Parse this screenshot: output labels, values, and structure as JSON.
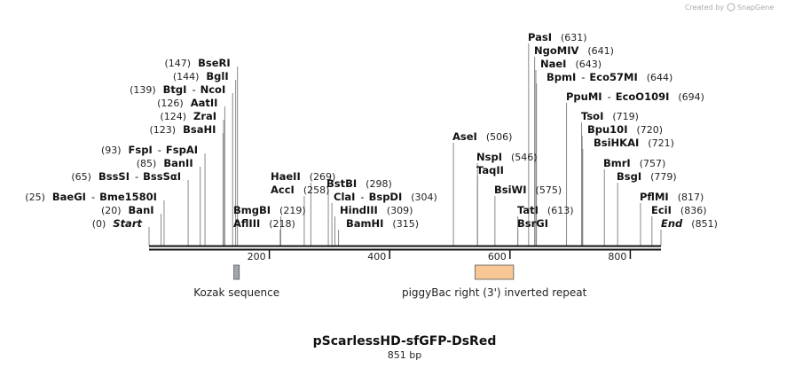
{
  "credit": {
    "text": "Created by",
    "brand": "SnapGene"
  },
  "map": {
    "title": "pScarlessHD-sfGFP-DsRed",
    "length": 851,
    "length_label": "851 bp"
  },
  "ticks": [
    {
      "bp": 200,
      "label": "200"
    },
    {
      "bp": 400,
      "label": "400"
    },
    {
      "bp": 600,
      "label": "600"
    },
    {
      "bp": 800,
      "label": "800"
    }
  ],
  "features": [
    {
      "name": "Kozak sequence",
      "start": 141,
      "end": 150,
      "color": "#a2a7ad"
    },
    {
      "name": "piggyBac right (3') inverted repeat",
      "start": 542,
      "end": 606,
      "color": "#f9c795"
    }
  ],
  "sites": [
    {
      "pos_text": "(0)",
      "name": "Start",
      "italic": true,
      "bp": 0
    },
    {
      "pos_text": "(20)",
      "name": "BanI",
      "bp": 20
    },
    {
      "pos_text": "(25)",
      "name": "BaeGI",
      "alt": "Bme1580I",
      "bp": 25
    },
    {
      "pos_text": "(65)",
      "name": "BssSI",
      "alt": "BssSαI",
      "bp": 65
    },
    {
      "pos_text": "(85)",
      "name": "BanII",
      "bp": 85
    },
    {
      "pos_text": "(93)",
      "name": "FspI",
      "alt": "FspAI",
      "bp": 93
    },
    {
      "pos_text": "(123)",
      "name": "BsaHI",
      "bp": 123
    },
    {
      "pos_text": "(124)",
      "name": "ZraI",
      "bp": 124
    },
    {
      "pos_text": "(126)",
      "name": "AatII",
      "bp": 126
    },
    {
      "pos_text": "(139)",
      "name": "BtgI",
      "alt": "NcoI",
      "bp": 139
    },
    {
      "pos_text": "(144)",
      "name": "BglI",
      "bp": 144
    },
    {
      "pos_text": "(147)",
      "name": "BseRI",
      "bp": 147
    },
    {
      "pos_text": "(218)",
      "name": "AflIII",
      "bp": 218
    },
    {
      "pos_text": "(219)",
      "name": "BmgBI",
      "bp": 219
    },
    {
      "pos_text": "(258)",
      "name": "AccI",
      "bp": 258
    },
    {
      "pos_text": "(269)",
      "name": "HaeII",
      "bp": 269
    },
    {
      "pos_text": "(298)",
      "name": "BstBI",
      "bp": 298
    },
    {
      "pos_text": "(304)",
      "name": "ClaI",
      "alt": "BspDI",
      "bp": 304
    },
    {
      "pos_text": "(309)",
      "name": "HindIII",
      "bp": 309
    },
    {
      "pos_text": "(315)",
      "name": "BamHI",
      "bp": 315
    },
    {
      "pos_text": "(506)",
      "name": "AseI",
      "bp": 506
    },
    {
      "pos_text": "(546)",
      "name": "NspI",
      "bp": 546
    },
    {
      "pos_text": "",
      "name": "TaqII",
      "bp": 546
    },
    {
      "pos_text": "(575)",
      "name": "BsiWI",
      "bp": 575
    },
    {
      "pos_text": "(613)",
      "name": "TatI",
      "bp": 613
    },
    {
      "pos_text": "",
      "name": "BsrGI",
      "bp": 613
    },
    {
      "pos_text": "(631)",
      "name": "PasI",
      "bp": 631
    },
    {
      "pos_text": "(641)",
      "name": "NgoMIV",
      "bp": 641
    },
    {
      "pos_text": "(643)",
      "name": "NaeI",
      "bp": 643
    },
    {
      "pos_text": "(644)",
      "name": "BpmI",
      "alt": "Eco57MI",
      "bp": 644
    },
    {
      "pos_text": "(694)",
      "name": "PpuMI",
      "alt": "EcoO109I",
      "bp": 694
    },
    {
      "pos_text": "(719)",
      "name": "TsoI",
      "bp": 719
    },
    {
      "pos_text": "(720)",
      "name": "Bpu10I",
      "bp": 720
    },
    {
      "pos_text": "(721)",
      "name": "BsiHKAI",
      "bp": 721
    },
    {
      "pos_text": "(757)",
      "name": "BmrI",
      "bp": 757
    },
    {
      "pos_text": "(779)",
      "name": "BsgI",
      "bp": 779
    },
    {
      "pos_text": "(817)",
      "name": "PflMI",
      "bp": 817
    },
    {
      "pos_text": "(836)",
      "name": "EciI",
      "bp": 836
    },
    {
      "pos_text": "(851)",
      "name": "End",
      "italic": true,
      "bp": 851
    }
  ]
}
